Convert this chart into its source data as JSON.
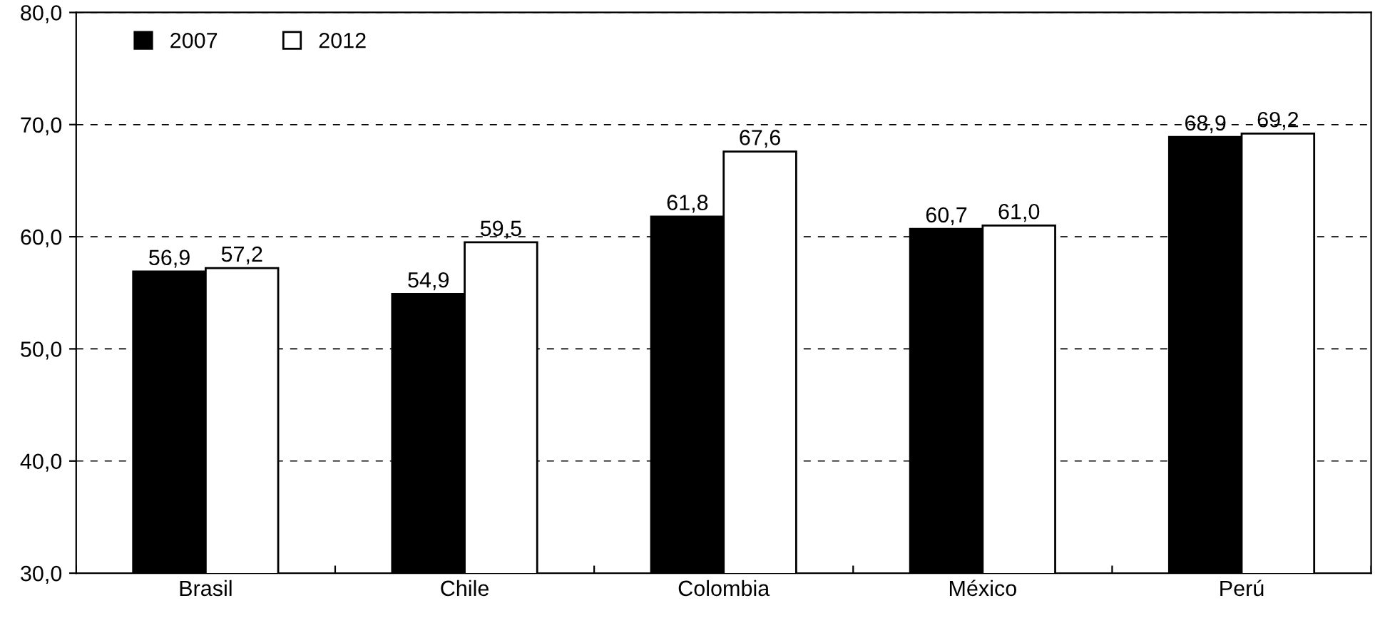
{
  "chart_data": {
    "type": "bar",
    "categories": [
      "Brasil",
      "Chile",
      "Colombia",
      "México",
      "Perú"
    ],
    "series": [
      {
        "name": "2007",
        "color": "#000000",
        "values": [
          56.9,
          54.9,
          61.8,
          60.7,
          68.9
        ],
        "value_labels": [
          "56,9",
          "54,9",
          "61,8",
          "60,7",
          "68,9"
        ]
      },
      {
        "name": "2012",
        "color": "#ffffff",
        "values": [
          57.2,
          59.5,
          67.6,
          61.0,
          69.2
        ],
        "value_labels": [
          "57,2",
          "59,5",
          "67,6",
          "61,0",
          "69,2"
        ]
      }
    ],
    "ylim": [
      30,
      80
    ],
    "yticks": [
      {
        "value": 30,
        "label": "30,0"
      },
      {
        "value": 40,
        "label": "40,0"
      },
      {
        "value": 50,
        "label": "50,0"
      },
      {
        "value": 60,
        "label": "60,0"
      },
      {
        "value": 70,
        "label": "70,0"
      },
      {
        "value": 80,
        "label": "80,0"
      }
    ],
    "grid": "y",
    "legend": "top left"
  }
}
